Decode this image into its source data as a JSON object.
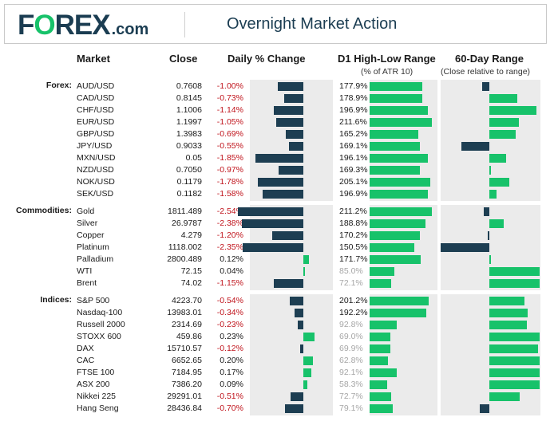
{
  "header": {
    "logo_fo": "F",
    "logo_o": "O",
    "logo_rex": "REX",
    "logo_com": ".com",
    "title": "Overnight Market Action"
  },
  "columns": {
    "market": "Market",
    "close": "Close",
    "change": "Daily % Change",
    "range": "D1 High-Low Range",
    "range_sub": "(% of ATR 10)",
    "day60": "60-Day Range",
    "day60_sub": "(Close relative to range)"
  },
  "colors": {
    "navy": "#1d3e52",
    "green": "#17c26a",
    "red": "#c0141c",
    "panel": "#ebebeb"
  },
  "chart_data": {
    "type": "table",
    "title": "Overnight Market Action",
    "groups": [
      {
        "name": "Forex:",
        "rows": [
          {
            "market": "AUD/USD",
            "close": "0.7608",
            "change": -1.0,
            "change_label": "-1.00%",
            "range": 177.9,
            "range_label": "177.9%",
            "d60": -0.15
          },
          {
            "market": "CAD/USD",
            "close": "0.8145",
            "change": -0.73,
            "change_label": "-0.73%",
            "range": 178.9,
            "range_label": "178.9%",
            "d60": 0.55
          },
          {
            "market": "CHF/USD",
            "close": "1.1006",
            "change": -1.14,
            "change_label": "-1.14%",
            "range": 196.9,
            "range_label": "196.9%",
            "d60": 0.93
          },
          {
            "market": "EUR/USD",
            "close": "1.1997",
            "change": -1.05,
            "change_label": "-1.05%",
            "range": 211.6,
            "range_label": "211.6%",
            "d60": 0.58
          },
          {
            "market": "GBP/USD",
            "close": "1.3983",
            "change": -0.69,
            "change_label": "-0.69%",
            "range": 165.2,
            "range_label": "165.2%",
            "d60": 0.52
          },
          {
            "market": "JPY/USD",
            "close": "0.9033",
            "change": -0.55,
            "change_label": "-0.55%",
            "range": 169.1,
            "range_label": "169.1%",
            "d60": -0.57
          },
          {
            "market": "MXN/USD",
            "close": "0.05",
            "change": -1.85,
            "change_label": "-1.85%",
            "range": 196.1,
            "range_label": "196.1%",
            "d60": 0.33
          },
          {
            "market": "NZD/USD",
            "close": "0.7050",
            "change": -0.97,
            "change_label": "-0.97%",
            "range": 169.3,
            "range_label": "169.3%",
            "d60": 0.02
          },
          {
            "market": "NOK/USD",
            "close": "0.1179",
            "change": -1.78,
            "change_label": "-1.78%",
            "range": 205.1,
            "range_label": "205.1%",
            "d60": 0.39
          },
          {
            "market": "SEK/USD",
            "close": "0.1182",
            "change": -1.58,
            "change_label": "-1.58%",
            "range": 196.9,
            "range_label": "196.9%",
            "d60": 0.14
          }
        ]
      },
      {
        "name": "Commodities:",
        "rows": [
          {
            "market": "Gold",
            "close": "1811.489",
            "change": -2.54,
            "change_label": "-2.54%",
            "range": 211.2,
            "range_label": "211.2%",
            "d60": -0.11
          },
          {
            "market": "Silver",
            "close": "26.9787",
            "change": -2.38,
            "change_label": "-2.38%",
            "range": 188.8,
            "range_label": "188.8%",
            "d60": 0.29
          },
          {
            "market": "Copper",
            "close": "4.279",
            "change": -1.2,
            "change_label": "-1.20%",
            "range": 170.2,
            "range_label": "170.2%",
            "d60": -0.04
          },
          {
            "market": "Platinum",
            "close": "1118.002",
            "change": -2.35,
            "change_label": "-2.35%",
            "range": 150.5,
            "range_label": "150.5%",
            "d60": -1.0
          },
          {
            "market": "Palladium",
            "close": "2800.489",
            "change": 0.12,
            "change_label": "0.12%",
            "range": 171.7,
            "range_label": "171.7%",
            "d60": 0.02
          },
          {
            "market": "WTI",
            "close": "72.15",
            "change": 0.04,
            "change_label": "0.04%",
            "range": 85.0,
            "range_label": "85.0%",
            "d60": 1.0
          },
          {
            "market": "Brent",
            "close": "74.02",
            "change": -1.15,
            "change_label": "-1.15%",
            "range": 72.1,
            "range_label": "72.1%",
            "d60": 1.0
          }
        ]
      },
      {
        "name": "Indices:",
        "rows": [
          {
            "market": "S&P 500",
            "close": "4223.70",
            "change": -0.54,
            "change_label": "-0.54%",
            "range": 201.2,
            "range_label": "201.2%",
            "d60": 0.7
          },
          {
            "market": "Nasdaq-100",
            "close": "13983.01",
            "change": -0.34,
            "change_label": "-0.34%",
            "range": 192.2,
            "range_label": "192.2%",
            "d60": 0.76
          },
          {
            "market": "Russell 2000",
            "close": "2314.69",
            "change": -0.23,
            "change_label": "-0.23%",
            "range": 92.8,
            "range_label": "92.8%",
            "d60": 0.74
          },
          {
            "market": "STOXX 600",
            "close": "459.86",
            "change": 0.23,
            "change_label": "0.23%",
            "range": 69.0,
            "range_label": "69.0%",
            "d60": 1.0
          },
          {
            "market": "DAX",
            "close": "15710.57",
            "change": -0.12,
            "change_label": "-0.12%",
            "range": 69.9,
            "range_label": "69.9%",
            "d60": 0.97
          },
          {
            "market": "CAC",
            "close": "6652.65",
            "change": 0.2,
            "change_label": "0.20%",
            "range": 62.8,
            "range_label": "62.8%",
            "d60": 1.0
          },
          {
            "market": "FTSE 100",
            "close": "7184.95",
            "change": 0.17,
            "change_label": "0.17%",
            "range": 92.1,
            "range_label": "92.1%",
            "d60": 1.0
          },
          {
            "market": "ASX 200",
            "close": "7386.20",
            "change": 0.09,
            "change_label": "0.09%",
            "range": 58.3,
            "range_label": "58.3%",
            "d60": 1.0
          },
          {
            "market": "Nikkei 225",
            "close": "29291.01",
            "change": -0.51,
            "change_label": "-0.51%",
            "range": 72.7,
            "range_label": "72.7%",
            "d60": 0.6
          },
          {
            "market": "Hang Seng",
            "close": "28436.84",
            "change": -0.7,
            "change_label": "-0.70%",
            "range": 79.1,
            "range_label": "79.1%",
            "d60": -0.19
          }
        ]
      }
    ],
    "change_axis": [
      -1.9,
      1.9
    ],
    "range_axis": [
      0,
      220
    ],
    "day60_axis": [
      -1,
      1
    ],
    "range_threshold": 100
  }
}
